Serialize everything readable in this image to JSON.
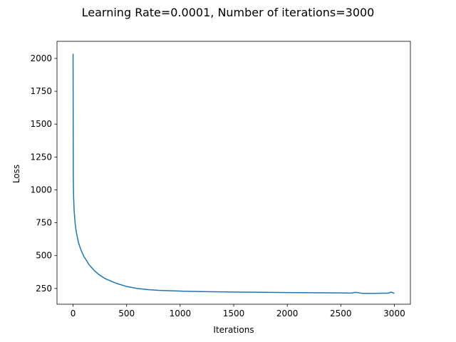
{
  "chart_data": {
    "type": "line",
    "title": "Learning Rate=0.0001, Number of iterations=3000",
    "xlabel": "Iterations",
    "ylabel": "Loss",
    "xlim": [
      -150,
      3150
    ],
    "ylim": [
      130,
      2130
    ],
    "xticks": [
      0,
      500,
      1000,
      1500,
      2000,
      2500,
      3000
    ],
    "yticks": [
      250,
      500,
      750,
      1000,
      1250,
      1500,
      1750,
      2000
    ],
    "grid": false,
    "legend": "none",
    "line_color": "#1f77b4",
    "series": [
      {
        "x": [
          0,
          2,
          5,
          10,
          20,
          30,
          50,
          75,
          100,
          150,
          200,
          250,
          300,
          400,
          500,
          600,
          700,
          800,
          1000,
          1200,
          1500,
          2000,
          2500,
          2600,
          2630,
          2660,
          2700,
          2800,
          2900,
          2940,
          2970,
          3000
        ],
        "values": [
          2035,
          1100,
          950,
          840,
          740,
          680,
          600,
          540,
          495,
          430,
          385,
          350,
          325,
          290,
          265,
          250,
          241,
          236,
          230,
          226,
          223,
          219,
          216,
          215,
          220,
          218,
          213,
          213,
          214,
          214,
          222,
          213
        ]
      }
    ]
  }
}
